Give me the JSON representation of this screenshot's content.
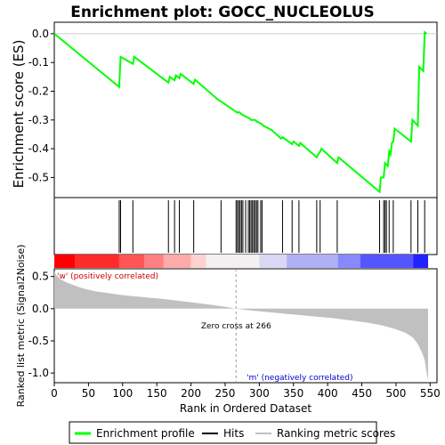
{
  "chart_data": {
    "type": "line",
    "title": "Enrichment plot: GOCC_NUCLEOLUS",
    "es_panel": {
      "ylabel": "Enrichment score (ES)",
      "yticks": [
        "0.0",
        "-0.1",
        "-0.2",
        "-0.3",
        "-0.4",
        "-0.5"
      ],
      "ylim": [
        -0.57,
        0.04
      ],
      "series": {
        "name": "Enrichment profile",
        "color": "#00ff00",
        "x": [
          0,
          95,
          97,
          115,
          117,
          167,
          169,
          176,
          178,
          183,
          185,
          204,
          206,
          240,
          244,
          268,
          270,
          276,
          286,
          288,
          294,
          296,
          304,
          306,
          318,
          332,
          334,
          348,
          350,
          358,
          360,
          384,
          386,
          389,
          391,
          414,
          416,
          476,
          478,
          482,
          484,
          488,
          490,
          492,
          494,
          496,
          498,
          522,
          524,
          532,
          534,
          540,
          542,
          545
        ],
        "y": [
          0.0,
          -0.185,
          -0.08,
          -0.105,
          -0.08,
          -0.17,
          -0.15,
          -0.162,
          -0.145,
          -0.155,
          -0.14,
          -0.175,
          -0.16,
          -0.23,
          -0.236,
          -0.275,
          -0.272,
          -0.283,
          -0.295,
          -0.3,
          -0.3,
          -0.305,
          -0.315,
          -0.32,
          -0.335,
          -0.365,
          -0.36,
          -0.384,
          -0.375,
          -0.39,
          -0.38,
          -0.43,
          -0.42,
          -0.41,
          -0.4,
          -0.45,
          -0.43,
          -0.55,
          -0.5,
          -0.5,
          -0.45,
          -0.46,
          -0.41,
          -0.42,
          -0.38,
          -0.375,
          -0.33,
          -0.375,
          -0.3,
          -0.32,
          -0.115,
          -0.13,
          0.005,
          0.0
        ]
      }
    },
    "hits": {
      "name": "Hits",
      "positions": [
        95,
        97,
        115,
        167,
        176,
        183,
        204,
        244,
        266,
        268,
        270,
        272,
        274,
        276,
        280,
        284,
        286,
        288,
        290,
        292,
        294,
        296,
        298,
        302,
        304,
        334,
        348,
        358,
        384,
        389,
        414,
        476,
        482,
        484,
        486,
        490,
        496,
        522,
        532,
        542
      ]
    },
    "metric_panel": {
      "name": "Ranking metric scores",
      "ylabel": "Ranked list metric (Signal2Noise)",
      "yticks": [
        "0.5",
        "0.0",
        "-0.5",
        "-1.0"
      ],
      "ylim": [
        -1.15,
        0.62
      ],
      "zero_cross_label": "Zero cross at 266",
      "zero_cross": 266,
      "pos_label": "'w' (positively correlated)",
      "neg_label": "'m' (negatively correlated)",
      "bar_color": "#c0c0c0",
      "profile": {
        "rank": [
          0,
          3,
          10,
          20,
          30,
          40,
          60,
          80,
          100,
          130,
          160,
          200,
          230,
          250,
          266,
          290,
          320,
          350,
          380,
          410,
          440,
          460,
          480,
          500,
          515,
          525,
          532,
          538,
          542,
          545,
          547
        ],
        "value": [
          0.58,
          0.52,
          0.45,
          0.4,
          0.36,
          0.32,
          0.27,
          0.24,
          0.21,
          0.18,
          0.15,
          0.1,
          0.06,
          0.03,
          0.0,
          -0.03,
          -0.06,
          -0.09,
          -0.12,
          -0.15,
          -0.19,
          -0.22,
          -0.26,
          -0.32,
          -0.38,
          -0.45,
          -0.55,
          -0.68,
          -0.8,
          -1.0,
          -1.12
        ]
      }
    },
    "xaxis": {
      "label": "Rank in Ordered Dataset",
      "ticks": [
        "0",
        "50",
        "100",
        "150",
        "200",
        "250",
        "300",
        "350",
        "400",
        "450",
        "500",
        "550"
      ],
      "xlim": [
        0,
        560
      ],
      "n": 547
    },
    "heat_colors": [
      "#ff0000",
      "#ff2a2a",
      "#ff5555",
      "#ff8080",
      "#ffaaaa",
      "#ffd0d0",
      "#f2f0f0",
      "#d8d8f4",
      "#b0b0f4",
      "#8888ff",
      "#5555ff",
      "#2222ff"
    ],
    "legend": [
      {
        "label": "Enrichment profile",
        "color": "#00ff00",
        "kind": "line"
      },
      {
        "label": "Hits",
        "color": "#000000",
        "kind": "line"
      },
      {
        "label": "Ranking metric scores",
        "color": "#c0c0c0",
        "kind": "line"
      }
    ]
  }
}
